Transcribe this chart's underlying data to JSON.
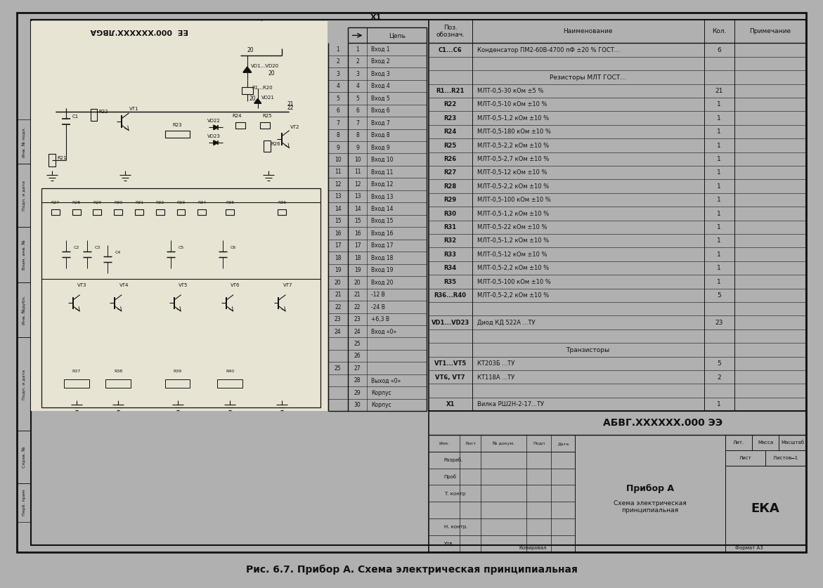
{
  "title": "Рис. 6.7. Прибор А. Схема электрическая принципиальная",
  "bg_color": "#b0b0b0",
  "paper_color": "#e8e4d4",
  "border_color": "#111111",
  "bom_rows": [
    [
      "C1...C6",
      "Конденсатор ПМ2-60В-4700 пФ ±20 % ГОСТ...",
      "6",
      ""
    ],
    [
      "",
      "",
      "",
      ""
    ],
    [
      "",
      "Резисторы МЛТ ГОСТ...",
      "",
      ""
    ],
    [
      "R1...R21",
      "МЛТ-0,5-30 кОм ±5 %",
      "21",
      ""
    ],
    [
      "R22",
      "МЛТ-0,5-10 кОм ±10 %",
      "1",
      ""
    ],
    [
      "R23",
      "МЛТ-0,5-1,2 кОм ±10 %",
      "1",
      ""
    ],
    [
      "R24",
      "МЛТ-0,5-180 кОм ±10 %",
      "1",
      ""
    ],
    [
      "R25",
      "МЛТ-0,5-2,2 кОм ±10 %",
      "1",
      ""
    ],
    [
      "R26",
      "МЛТ-0,5-2,7 кОм ±10 %",
      "1",
      ""
    ],
    [
      "R27",
      "МЛТ-0,5-12 кОм ±10 %",
      "1",
      ""
    ],
    [
      "R28",
      "МЛТ-0,5-2,2 кОм ±10 %",
      "1",
      ""
    ],
    [
      "R29",
      "МЛТ-0,5-100 кОм ±10 %",
      "1",
      ""
    ],
    [
      "R30",
      "МЛТ-0,5-1,2 кОм ±10 %",
      "1",
      ""
    ],
    [
      "R31",
      "МЛТ-0,5-22 кОм ±10 %",
      "1",
      ""
    ],
    [
      "R32",
      "МЛТ-0,5-1,2 кОм ±10 %",
      "1",
      ""
    ],
    [
      "R33",
      "МЛТ-0,5-12 кОм ±10 %",
      "1",
      ""
    ],
    [
      "R34",
      "МЛТ-0,5-2,2 кОм ±10 %",
      "1",
      ""
    ],
    [
      "R35",
      "МЛТ-0,5-100 кОм ±10 %",
      "1",
      ""
    ],
    [
      "R36...R40",
      "МЛТ-0,5-2,2 кОм ±10 %",
      "5",
      ""
    ],
    [
      "",
      "",
      "",
      ""
    ],
    [
      "VD1...VD23",
      "Диод КД 522А ...ТУ",
      "23",
      ""
    ],
    [
      "",
      "",
      "",
      ""
    ],
    [
      "",
      "Транзисторы",
      "",
      ""
    ],
    [
      "VT1...VT5",
      "КТ203Б ...ТУ",
      "5",
      ""
    ],
    [
      "VT6, VT7",
      "КТ118А ...ТУ",
      "2",
      ""
    ],
    [
      "",
      "",
      "",
      ""
    ],
    [
      "X1",
      "Вилка РШ2Н-2-17...ТУ",
      "1",
      ""
    ]
  ],
  "connector_rows": [
    [
      "1",
      "Вход 1"
    ],
    [
      "2",
      "Вход 2"
    ],
    [
      "3",
      "Вход 3"
    ],
    [
      "4",
      "Вход 4"
    ],
    [
      "5",
      "Вход 5"
    ],
    [
      "6",
      "Вход 6"
    ],
    [
      "7",
      "Вход 7"
    ],
    [
      "8",
      "Вход 8"
    ],
    [
      "9",
      "Вход 9"
    ],
    [
      "10",
      "Вход 10"
    ],
    [
      "11",
      "Вход 11"
    ],
    [
      "12",
      "Вход 12"
    ],
    [
      "13",
      "Вход 13"
    ],
    [
      "14",
      "Вход 14"
    ],
    [
      "15",
      "Вход 15"
    ],
    [
      "16",
      "Вход 16"
    ],
    [
      "17",
      "Вход 17"
    ],
    [
      "18",
      "Вход 18"
    ],
    [
      "19",
      "Вход 19"
    ],
    [
      "20",
      "Вход 20"
    ],
    [
      "21",
      "-12 В"
    ],
    [
      "22",
      "-24 В"
    ],
    [
      "23",
      "+6,3 В"
    ],
    [
      "24",
      "Вход «0»"
    ],
    [
      "25",
      ""
    ],
    [
      "26",
      ""
    ],
    [
      "27",
      ""
    ],
    [
      "28",
      "Выход «0»"
    ],
    [
      "29",
      "Корпус"
    ],
    [
      "30",
      "Корпус"
    ]
  ],
  "ext_row_labels": [
    "1",
    "2",
    "3",
    "4",
    "5",
    "6",
    "7",
    "8",
    "9",
    "10",
    "11",
    "12",
    "13",
    "14",
    "15",
    "16",
    "17",
    "18",
    "19",
    "20",
    "21",
    "22",
    "23",
    "24",
    "",
    "",
    "25",
    "",
    "",
    ""
  ],
  "side_defs": [
    [
      6.5,
      13.5,
      "Перб. прим"
    ],
    [
      13.5,
      23.0,
      "Справ. №"
    ],
    [
      23.0,
      40.0,
      "Подп. и дата"
    ],
    [
      40.0,
      50.0,
      "Инв. №дубл."
    ],
    [
      50.0,
      60.0,
      "Взам. инв. №"
    ],
    [
      60.0,
      71.5,
      "Подп. и дата"
    ],
    [
      71.5,
      79.5,
      "Инв. № подл."
    ]
  ]
}
